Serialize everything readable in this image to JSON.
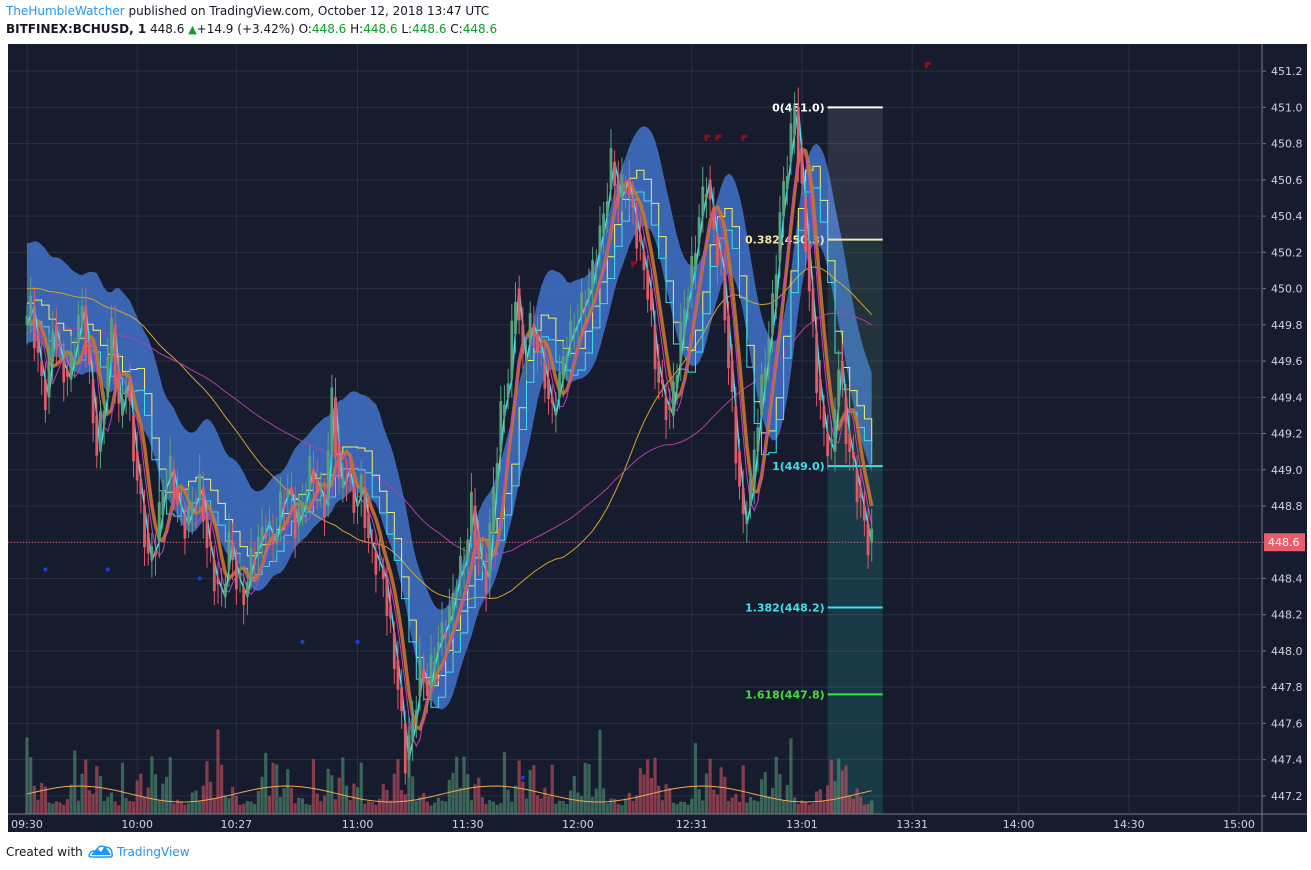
{
  "header": {
    "author": "TheHumbleWatcher",
    "published_text": "published on TradingView.com, October 12, 2018 13:47 UTC",
    "symbol": "BITFINEX:BCHUSD, 1",
    "last": "448.6",
    "change": "+14.9 (+3.42%)",
    "open_label": "O:",
    "open": "448.6",
    "high_label": "H:",
    "high": "448.6",
    "low_label": "L:",
    "low": "448.6",
    "close_label": "C:",
    "close": "448.6"
  },
  "footer": {
    "created_with": "Created with",
    "brand": "TradingView"
  },
  "colors": {
    "bg": "#161b2e",
    "up": "#5aa07c",
    "down": "#e05a68",
    "band": "#3f72c9",
    "cyan": "#3fe0e8",
    "yellow": "#f2f26a",
    "orange": "#c9742d",
    "magenta": "#c23fd1",
    "last_price": "#e85d6a"
  },
  "chart_data": {
    "type": "candlestick",
    "symbol": "BITFINEX:BCHUSD",
    "interval": "1",
    "ylim": [
      447.1,
      451.35
    ],
    "y_ticks": [
      447.2,
      447.4,
      447.6,
      447.8,
      448.0,
      448.2,
      448.4,
      448.6,
      448.8,
      449.0,
      449.2,
      449.4,
      449.6,
      449.8,
      450.0,
      450.2,
      450.4,
      450.6,
      450.8,
      451.0,
      451.2
    ],
    "x_ticks": [
      "09:30",
      "10:00",
      "10:27",
      "11:00",
      "11:30",
      "12:00",
      "12:31",
      "13:01",
      "13:31",
      "14:00",
      "14:30",
      "15:00"
    ],
    "x_tick_minutes": [
      0,
      30,
      57,
      90,
      120,
      150,
      181,
      211,
      241,
      270,
      300,
      330
    ],
    "last_price": 448.6,
    "last_price_label": "448.6",
    "fib_levels": [
      {
        "label": "0(451.0)",
        "value": 451.0
      },
      {
        "label": "0.382(450.3)",
        "value": 450.27
      },
      {
        "label": "1(449.0)",
        "value": 449.02
      },
      {
        "label": "1.382(448.2)",
        "value": 448.24
      },
      {
        "label": "1.618(447.8)",
        "value": 447.76
      }
    ],
    "fib_start_minute": 218,
    "fib_end_minute": 233,
    "close_path": [
      [
        0,
        449.8
      ],
      [
        2,
        449.9
      ],
      [
        4,
        449.6
      ],
      [
        6,
        449.4
      ],
      [
        8,
        449.8
      ],
      [
        10,
        449.6
      ],
      [
        12,
        449.5
      ],
      [
        14,
        449.7
      ],
      [
        16,
        449.9
      ],
      [
        18,
        449.5
      ],
      [
        20,
        449.1
      ],
      [
        22,
        449.4
      ],
      [
        24,
        449.8
      ],
      [
        26,
        449.3
      ],
      [
        28,
        449.5
      ],
      [
        30,
        449.1
      ],
      [
        32,
        448.8
      ],
      [
        34,
        448.5
      ],
      [
        36,
        448.6
      ],
      [
        38,
        448.9
      ],
      [
        40,
        449.0
      ],
      [
        42,
        448.8
      ],
      [
        44,
        448.7
      ],
      [
        46,
        448.8
      ],
      [
        48,
        448.9
      ],
      [
        50,
        448.6
      ],
      [
        52,
        448.4
      ],
      [
        54,
        448.3
      ],
      [
        56,
        448.6
      ],
      [
        58,
        448.4
      ],
      [
        60,
        448.3
      ],
      [
        62,
        448.5
      ],
      [
        64,
        448.6
      ],
      [
        66,
        448.7
      ],
      [
        68,
        448.6
      ],
      [
        70,
        448.8
      ],
      [
        72,
        448.9
      ],
      [
        74,
        448.7
      ],
      [
        76,
        448.8
      ],
      [
        78,
        449.0
      ],
      [
        80,
        448.9
      ],
      [
        82,
        448.8
      ],
      [
        84,
        449.4
      ],
      [
        86,
        448.9
      ],
      [
        88,
        449.0
      ],
      [
        90,
        448.8
      ],
      [
        92,
        448.9
      ],
      [
        94,
        448.6
      ],
      [
        96,
        448.5
      ],
      [
        98,
        448.4
      ],
      [
        100,
        448.1
      ],
      [
        102,
        447.8
      ],
      [
        104,
        447.4
      ],
      [
        106,
        447.6
      ],
      [
        108,
        447.9
      ],
      [
        110,
        447.8
      ],
      [
        112,
        448.0
      ],
      [
        114,
        448.1
      ],
      [
        116,
        448.2
      ],
      [
        118,
        448.4
      ],
      [
        120,
        448.5
      ],
      [
        122,
        448.8
      ],
      [
        124,
        448.5
      ],
      [
        126,
        448.4
      ],
      [
        128,
        448.9
      ],
      [
        130,
        449.3
      ],
      [
        132,
        449.5
      ],
      [
        134,
        450.0
      ],
      [
        136,
        449.6
      ],
      [
        138,
        449.8
      ],
      [
        140,
        449.7
      ],
      [
        142,
        449.5
      ],
      [
        144,
        449.3
      ],
      [
        146,
        449.5
      ],
      [
        148,
        449.7
      ],
      [
        150,
        449.8
      ],
      [
        152,
        449.9
      ],
      [
        154,
        450.0
      ],
      [
        156,
        450.2
      ],
      [
        158,
        450.4
      ],
      [
        160,
        450.7
      ],
      [
        162,
        450.5
      ],
      [
        164,
        450.6
      ],
      [
        166,
        450.4
      ],
      [
        168,
        450.2
      ],
      [
        170,
        450.0
      ],
      [
        172,
        449.6
      ],
      [
        174,
        449.4
      ],
      [
        176,
        449.3
      ],
      [
        178,
        449.6
      ],
      [
        180,
        449.9
      ],
      [
        182,
        450.1
      ],
      [
        184,
        450.4
      ],
      [
        186,
        450.6
      ],
      [
        188,
        450.3
      ],
      [
        190,
        450.1
      ],
      [
        192,
        449.6
      ],
      [
        194,
        449.1
      ],
      [
        196,
        448.7
      ],
      [
        198,
        448.9
      ],
      [
        200,
        449.3
      ],
      [
        202,
        449.6
      ],
      [
        204,
        449.9
      ],
      [
        206,
        450.4
      ],
      [
        208,
        450.7
      ],
      [
        210,
        451.0
      ],
      [
        212,
        450.5
      ],
      [
        214,
        450.0
      ],
      [
        216,
        449.5
      ],
      [
        218,
        449.2
      ],
      [
        220,
        449.1
      ],
      [
        222,
        449.6
      ],
      [
        224,
        449.2
      ],
      [
        226,
        449.0
      ],
      [
        228,
        448.8
      ],
      [
        230,
        448.6
      ]
    ],
    "volume_scale_max": 1.0
  }
}
